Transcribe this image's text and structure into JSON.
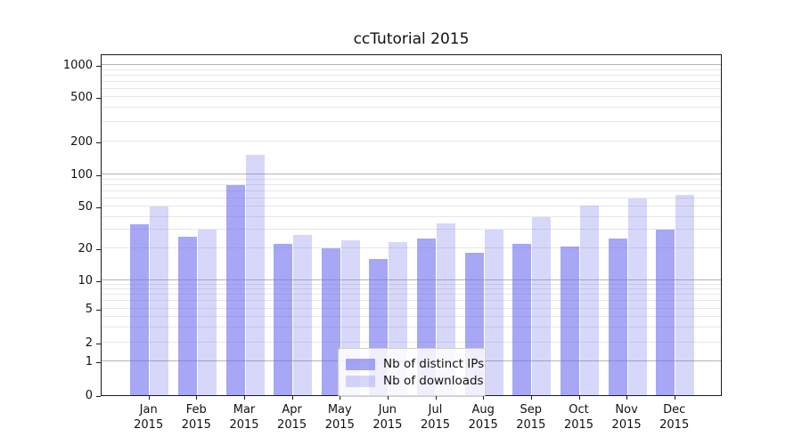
{
  "title": "ccTutorial 2015",
  "colors": {
    "bar_dark": "rgba(108,108,238,0.6)",
    "bar_light": "rgba(108,108,238,0.27)",
    "grid_major": "#b3b3b3",
    "grid_minor": "#e7e7e7",
    "axis": "#1a1a1a"
  },
  "legend": {
    "items": [
      {
        "label": "Nb of distinct IPs",
        "swatch": "dark-periwinkle"
      },
      {
        "label": "Nb of downloads",
        "swatch": "light-periwinkle"
      }
    ]
  },
  "chart_data": {
    "type": "bar",
    "title": "ccTutorial 2015",
    "categories": [
      "Jan",
      "Feb",
      "Mar",
      "Apr",
      "May",
      "Jun",
      "Jul",
      "Aug",
      "Sep",
      "Oct",
      "Nov",
      "Dec"
    ],
    "year_label": "2015",
    "series": [
      {
        "name": "Nb of distinct IPs",
        "values": [
          34,
          26,
          80,
          22,
          20,
          16,
          25,
          18,
          22,
          21,
          25,
          30
        ]
      },
      {
        "name": "Nb of downloads",
        "values": [
          50,
          30,
          150,
          27,
          24,
          23,
          35,
          30,
          40,
          51,
          60,
          65
        ]
      }
    ],
    "xlabel": "",
    "ylabel": "",
    "y_ticks": [
      0,
      1,
      2,
      5,
      10,
      20,
      50,
      100,
      200,
      500,
      1000
    ],
    "y_minor_gridlines": [
      3,
      4,
      6,
      7,
      8,
      9,
      30,
      40,
      60,
      70,
      80,
      90,
      300,
      400,
      600,
      700,
      800,
      900
    ],
    "y_major_gridlines": [
      1,
      10,
      100,
      1000
    ],
    "y_scale": "symlog",
    "ylim": [
      0,
      1100
    ],
    "grid": "on",
    "legend_position": "lower center"
  }
}
